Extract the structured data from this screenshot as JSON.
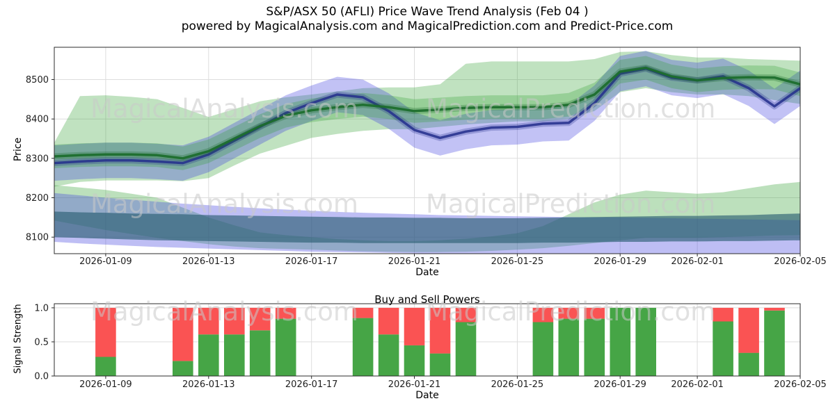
{
  "title": {
    "line1": "S&P/ASX 50 (AFLI) Price Wave Trend Analysis (Feb 04 )",
    "line2": "powered by MagicalAnalysis.com and MagicalPrediction.com and Predict-Price.com"
  },
  "watermarks": {
    "left": "MagicalAnalysis.com",
    "right": "MagicalPrediction.com"
  },
  "chart_data": [
    {
      "type": "area",
      "name": "price-wave-trend",
      "ylabel": "Price",
      "xlabel": "Date",
      "dates_start": "2026-01-07",
      "x_tick_labels": [
        "2026-01-09",
        "2026-01-13",
        "2026-01-17",
        "2026-01-21",
        "2026-01-25",
        "2026-01-29",
        "2026-02-01",
        "2026-02-05"
      ],
      "x_tick_days": [
        2,
        6,
        10,
        14,
        18,
        22,
        25,
        29
      ],
      "y_ticks": [
        8100,
        8200,
        8300,
        8400,
        8500
      ],
      "ylim": [
        8058,
        8582
      ],
      "xlim_days": [
        0,
        29
      ],
      "grid": true,
      "bands": [
        {
          "name": "lower-green-band",
          "color": "#2e9e2e",
          "opacity": 0.32,
          "upper": [
            8232,
            8226,
            8220,
            8210,
            8200,
            8175,
            8150,
            8130,
            8112,
            8105,
            8100,
            8095,
            8092,
            8090,
            8090,
            8092,
            8096,
            8102,
            8110,
            8128,
            8158,
            8188,
            8208,
            8218,
            8214,
            8210,
            8214,
            8224,
            8234,
            8240
          ],
          "lower": [
            8142,
            8130,
            8118,
            8108,
            8098,
            8090,
            8082,
            8076,
            8072,
            8070,
            8068,
            8066,
            8064,
            8063,
            8062,
            8062,
            8063,
            8065,
            8068,
            8072,
            8078,
            8085,
            8092,
            8098,
            8098,
            8098,
            8100,
            8102,
            8104,
            8105
          ]
        },
        {
          "name": "lower-purple-band",
          "color": "#4646e0",
          "opacity": 0.35,
          "upper": [
            8212,
            8206,
            8200,
            8195,
            8190,
            8185,
            8181,
            8177,
            8173,
            8170,
            8167,
            8164,
            8162,
            8160,
            8158,
            8156,
            8155,
            8154,
            8153,
            8152,
            8151,
            8150,
            8150,
            8149,
            8148,
            8147,
            8146,
            8145,
            8144,
            8143
          ],
          "lower": [
            8088,
            8084,
            8081,
            8078,
            8075,
            8073,
            8071,
            8069,
            8067,
            8065,
            8063,
            8062,
            8061,
            8060,
            8059,
            8058,
            8057,
            8056,
            8056,
            8055,
            8055,
            8054,
            8054,
            8053,
            8053,
            8052,
            8052,
            8051,
            8051,
            8050
          ]
        },
        {
          "name": "lower-slate-band",
          "color": "#275a70",
          "opacity": 0.62,
          "upper": [
            8165,
            8163,
            8162,
            8160,
            8159,
            8158,
            8156,
            8155,
            8154,
            8153,
            8152,
            8151,
            8150,
            8150,
            8149,
            8149,
            8148,
            8148,
            8148,
            8149,
            8150,
            8151,
            8152,
            8153,
            8154,
            8154,
            8155,
            8156,
            8158,
            8160
          ],
          "lower": [
            8100,
            8098,
            8096,
            8094,
            8092,
            8091,
            8090,
            8089,
            8088,
            8087,
            8086,
            8086,
            8085,
            8085,
            8085,
            8085,
            8085,
            8085,
            8085,
            8086,
            8086,
            8087,
            8088,
            8088,
            8089,
            8089,
            8090,
            8090,
            8091,
            8092
          ]
        },
        {
          "name": "green-envelope-outer",
          "color": "#2e9e2e",
          "opacity": 0.3,
          "upper": [
            8340,
            8458,
            8460,
            8456,
            8450,
            8428,
            8405,
            8425,
            8445,
            8455,
            8462,
            8470,
            8478,
            8480,
            8480,
            8488,
            8540,
            8546,
            8546,
            8546,
            8546,
            8552,
            8570,
            8572,
            8562,
            8556,
            8556,
            8552,
            8550,
            8548
          ],
          "lower": [
            8228,
            8240,
            8244,
            8244,
            8244,
            8242,
            8250,
            8282,
            8312,
            8332,
            8352,
            8362,
            8370,
            8374,
            8374,
            8380,
            8386,
            8390,
            8394,
            8394,
            8400,
            8420,
            8468,
            8478,
            8468,
            8462,
            8462,
            8458,
            8448,
            8438
          ]
        },
        {
          "name": "blue-envelope",
          "color": "#3434dd",
          "opacity": 0.3,
          "upper": [
            8333,
            8337,
            8340,
            8340,
            8337,
            8333,
            8355,
            8390,
            8425,
            8460,
            8485,
            8507,
            8500,
            8465,
            8417,
            8397,
            8413,
            8423,
            8425,
            8433,
            8435,
            8485,
            8560,
            8573,
            8550,
            8543,
            8553,
            8523,
            8477,
            8523
          ],
          "lower": [
            8243,
            8247,
            8250,
            8250,
            8247,
            8243,
            8265,
            8300,
            8335,
            8370,
            8395,
            8417,
            8410,
            8375,
            8327,
            8307,
            8323,
            8333,
            8335,
            8343,
            8345,
            8395,
            8470,
            8483,
            8460,
            8453,
            8463,
            8433,
            8387,
            8433
          ]
        },
        {
          "name": "green-envelope-inner",
          "color": "#2e9e2e",
          "opacity": 0.28,
          "upper": [
            8335,
            8338,
            8340,
            8340,
            8338,
            8330,
            8348,
            8380,
            8412,
            8438,
            8452,
            8460,
            8466,
            8460,
            8450,
            8454,
            8458,
            8460,
            8460,
            8460,
            8466,
            8492,
            8550,
            8560,
            8538,
            8528,
            8534,
            8536,
            8535,
            8518
          ],
          "lower": [
            8275,
            8278,
            8280,
            8280,
            8278,
            8270,
            8288,
            8320,
            8352,
            8378,
            8392,
            8400,
            8406,
            8400,
            8390,
            8394,
            8398,
            8400,
            8400,
            8400,
            8406,
            8432,
            8490,
            8500,
            8478,
            8468,
            8474,
            8476,
            8475,
            8458
          ]
        }
      ],
      "lines": [
        {
          "name": "blue-trend-line",
          "color": "#232e8c",
          "width": 3.5,
          "opacity": 0.85,
          "halo_width": 9,
          "halo_opacity": 0.28,
          "values": [
            8288,
            8292,
            8295,
            8295,
            8292,
            8288,
            8310,
            8345,
            8380,
            8415,
            8440,
            8462,
            8455,
            8420,
            8372,
            8352,
            8368,
            8378,
            8380,
            8388,
            8390,
            8440,
            8515,
            8528,
            8505,
            8498,
            8508,
            8478,
            8432,
            8478
          ]
        },
        {
          "name": "green-trend-line",
          "color": "#1b6d2b",
          "width": 3.5,
          "opacity": 0.92,
          "halo_width": 9,
          "halo_opacity": 0.28,
          "values": [
            8305,
            8308,
            8310,
            8310,
            8308,
            8300,
            8318,
            8350,
            8382,
            8408,
            8422,
            8430,
            8436,
            8430,
            8420,
            8424,
            8428,
            8430,
            8430,
            8430,
            8436,
            8462,
            8520,
            8530,
            8508,
            8498,
            8504,
            8506,
            8505,
            8488
          ]
        }
      ]
    },
    {
      "type": "stacked-bar",
      "name": "buy-sell-powers",
      "title": "Buy and Sell Powers",
      "ylabel": "Signal Strength",
      "xlabel": "Date",
      "x_tick_labels": [
        "2026-01-09",
        "2026-01-13",
        "2026-01-17",
        "2026-01-21",
        "2026-01-25",
        "2026-01-29",
        "2026-02-01",
        "2026-02-05"
      ],
      "x_tick_days": [
        2,
        6,
        10,
        14,
        18,
        22,
        25,
        29
      ],
      "y_tick_labels": [
        "0.0",
        "0.5",
        "1.0"
      ],
      "y_tick_values": [
        0,
        0.5,
        1
      ],
      "ylim": [
        0,
        1.06
      ],
      "grid": true,
      "series_colors": {
        "buy": "#46a546",
        "sell": "#fa5353"
      },
      "bars": [
        {
          "date": "2026-01-09",
          "day": 2,
          "buy": 0.28,
          "sell": 0.72
        },
        {
          "date": "2026-01-12",
          "day": 5,
          "buy": 0.22,
          "sell": 0.78
        },
        {
          "date": "2026-01-13",
          "day": 6,
          "buy": 0.61,
          "sell": 0.39
        },
        {
          "date": "2026-01-14",
          "day": 7,
          "buy": 0.61,
          "sell": 0.39
        },
        {
          "date": "2026-01-15",
          "day": 8,
          "buy": 0.67,
          "sell": 0.33
        },
        {
          "date": "2026-01-16",
          "day": 9,
          "buy": 0.84,
          "sell": 0.16
        },
        {
          "date": "2026-01-19",
          "day": 12,
          "buy": 0.85,
          "sell": 0.15
        },
        {
          "date": "2026-01-20",
          "day": 13,
          "buy": 0.61,
          "sell": 0.39
        },
        {
          "date": "2026-01-21",
          "day": 14,
          "buy": 0.45,
          "sell": 0.55
        },
        {
          "date": "2026-01-22",
          "day": 15,
          "buy": 0.33,
          "sell": 0.67
        },
        {
          "date": "2026-01-23",
          "day": 16,
          "buy": 0.79,
          "sell": 0.21
        },
        {
          "date": "2026-01-26",
          "day": 19,
          "buy": 0.79,
          "sell": 0.21
        },
        {
          "date": "2026-01-27",
          "day": 20,
          "buy": 0.84,
          "sell": 0.16
        },
        {
          "date": "2026-01-28",
          "day": 21,
          "buy": 0.84,
          "sell": 0.16
        },
        {
          "date": "2026-01-29",
          "day": 22,
          "buy": 1.0,
          "sell": 0.0
        },
        {
          "date": "2026-01-30",
          "day": 23,
          "buy": 1.0,
          "sell": 0.0
        },
        {
          "date": "2026-02-02",
          "day": 26,
          "buy": 0.8,
          "sell": 0.2
        },
        {
          "date": "2026-02-03",
          "day": 27,
          "buy": 0.34,
          "sell": 0.66
        },
        {
          "date": "2026-02-04",
          "day": 28,
          "buy": 0.96,
          "sell": 0.04
        }
      ]
    }
  ],
  "colors": {
    "grid": "#dddddd",
    "axes": "#2b2b2b",
    "tick_text": "#202020",
    "watermark": "#c9c9c9"
  }
}
